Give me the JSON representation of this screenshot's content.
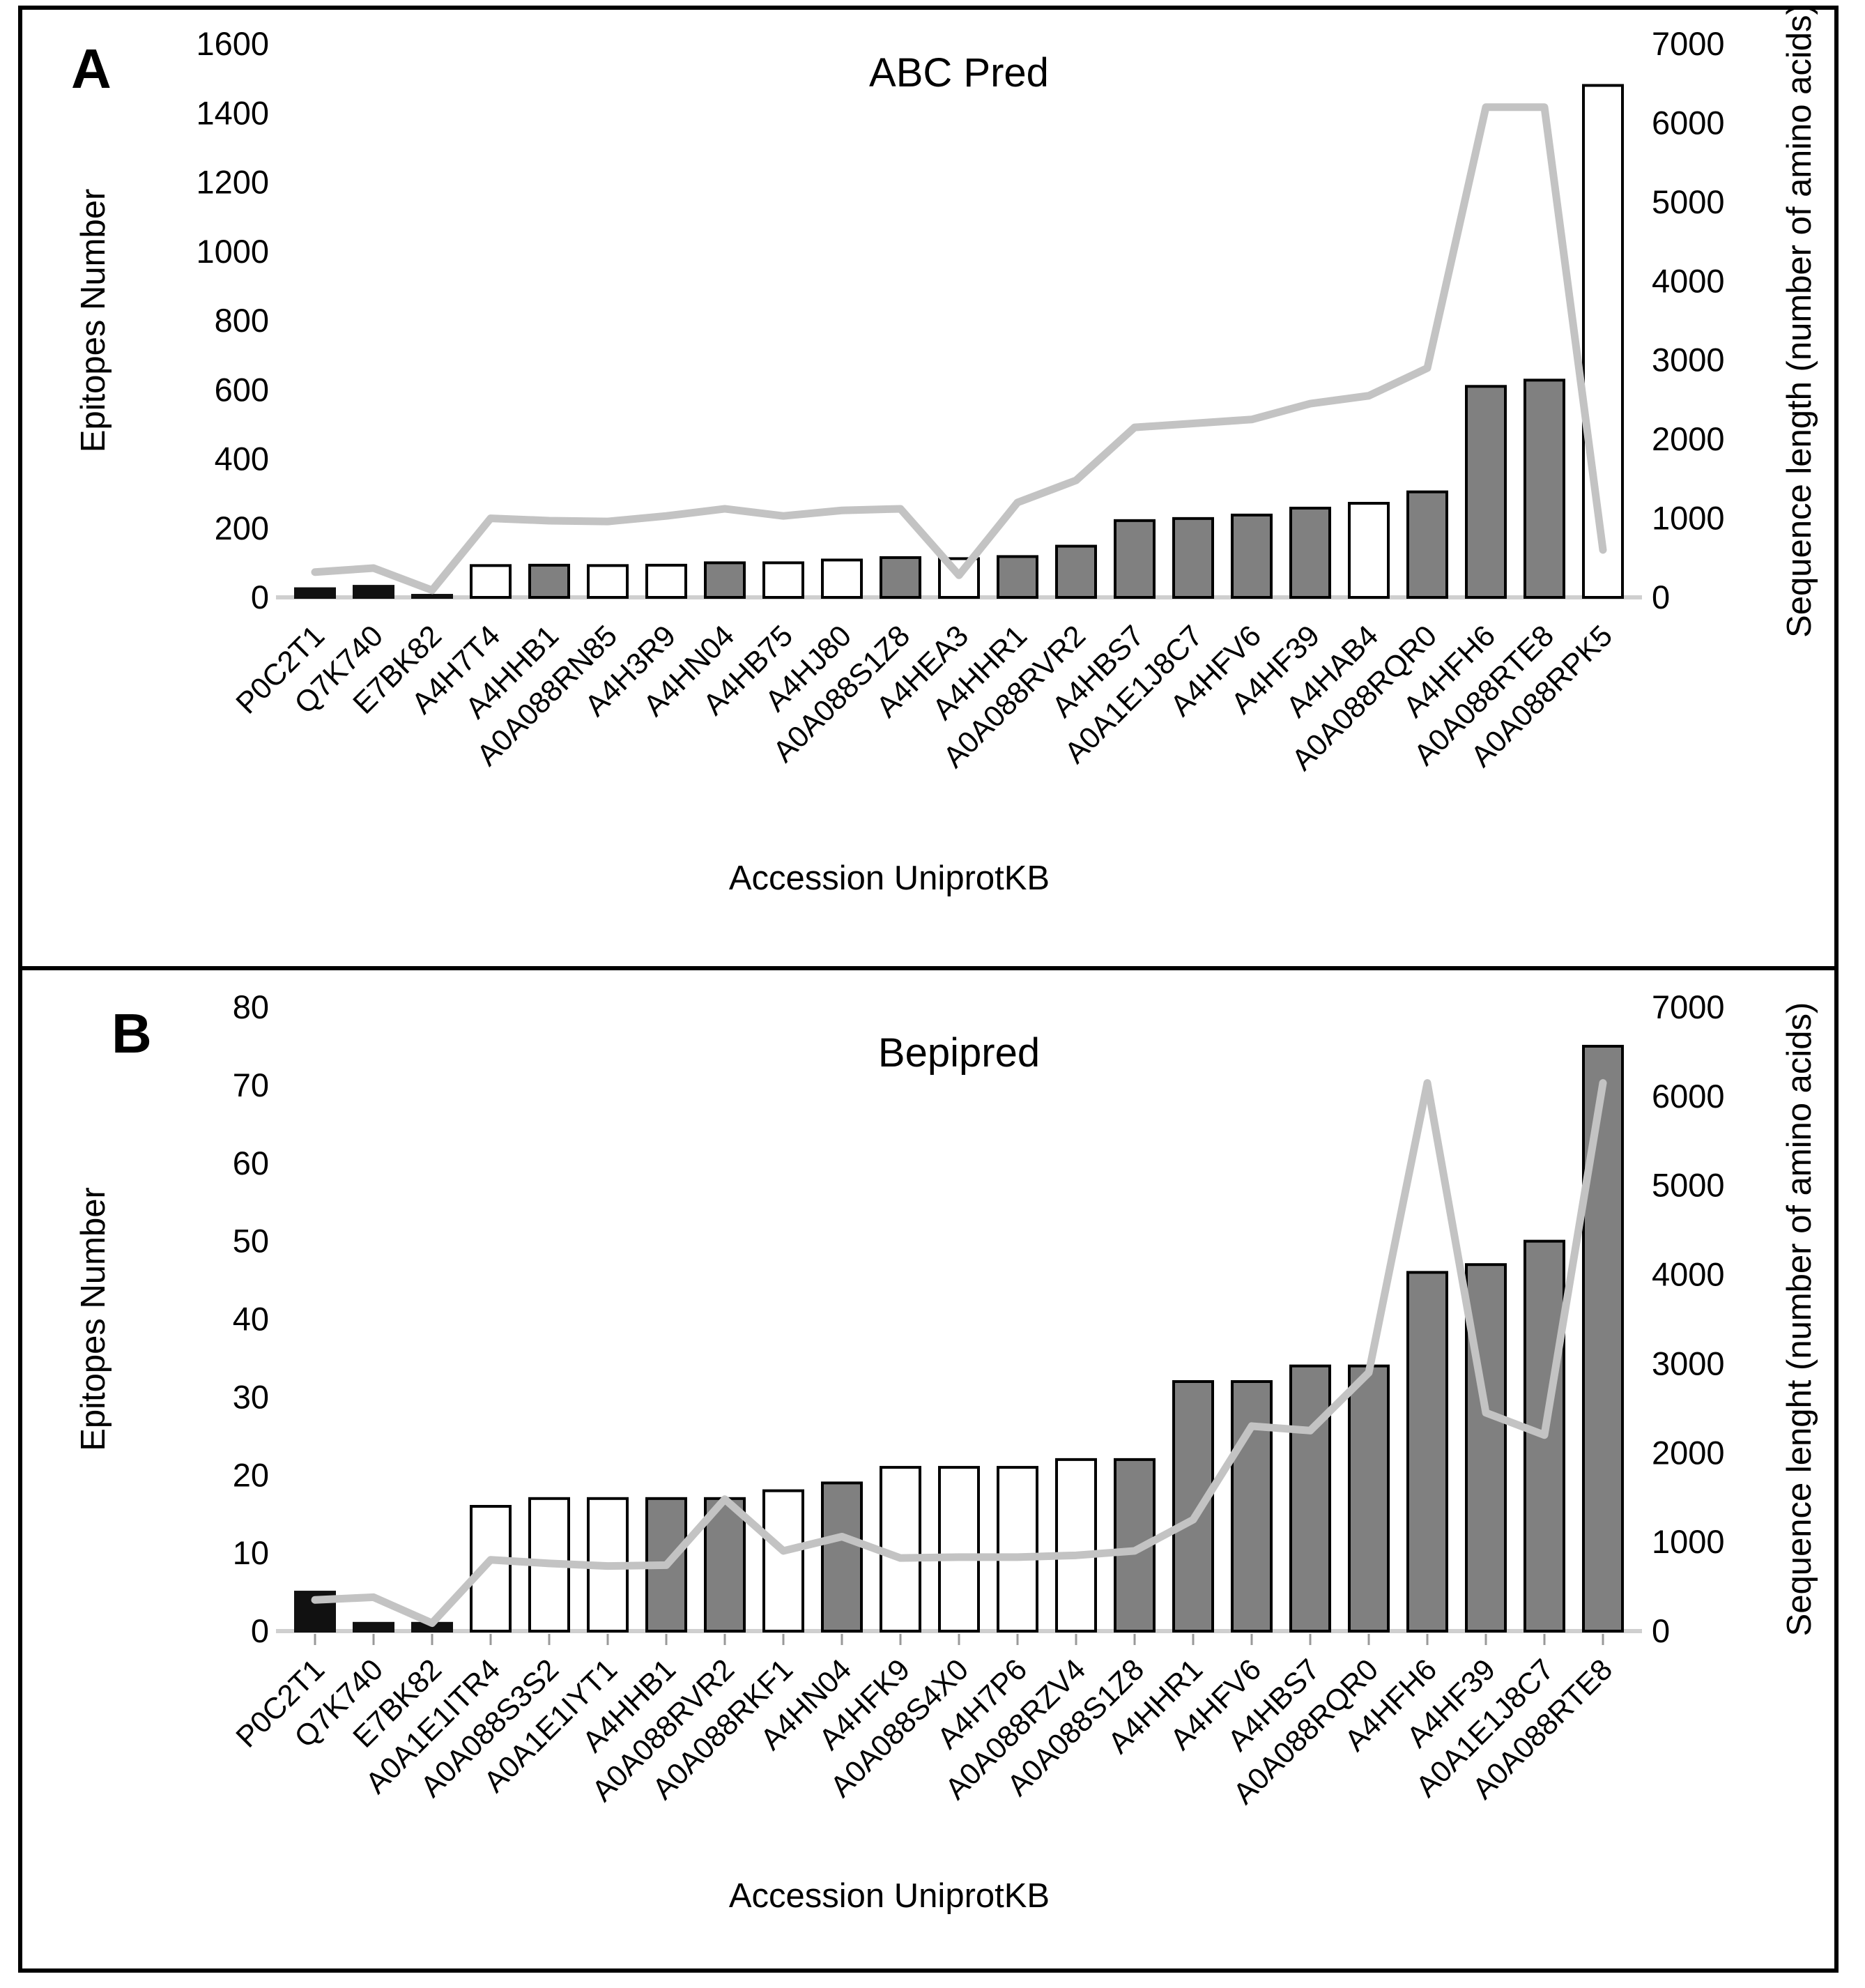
{
  "figure": {
    "kind": "two-panel scientific figure",
    "background": "#ffffff",
    "panel_letters": [
      "A",
      "B"
    ]
  },
  "colors": {
    "bar_black": "#111111",
    "bar_white": "#ffffff",
    "bar_gray": "#808080",
    "bar_stroke": "#000000",
    "line_gray": "#c3c3c3",
    "axis_line": "#cfcfcf",
    "tick_mark": "#999999",
    "text": "#000000",
    "border": "#000000"
  },
  "chart_data": [
    {
      "panel": "A",
      "type": "bar",
      "combo": "bar+line",
      "title": "ABC Pred",
      "xlabel": "Accession UniprotKB",
      "ylabel_left": "Epitopes Number",
      "ylabel_right": "Sequence length (number of amino acids)",
      "y_left_range": [
        0,
        1600
      ],
      "y_left_step": 200,
      "y_right_range": [
        0,
        7000
      ],
      "y_right_step": 1000,
      "grid": false,
      "legend": "none",
      "x_tick_marks": false,
      "categories": [
        "P0C2T1",
        "Q7K740",
        "E7BK82",
        "A4H7T4",
        "A4HHB1",
        "A0A088RN85",
        "A4H3R9",
        "A4HN04",
        "A4HB75",
        "A4HJ80",
        "A0A088S1Z8",
        "A4HEA3",
        "A4HHR1",
        "A0A088RVR2",
        "A4HBS7",
        "A0A1E1J8C7",
        "A4HFV6",
        "A4HF39",
        "A4HAB4",
        "A0A088RQR0",
        "A4HFH6",
        "A0A088RTE8",
        "A0A088RPK5"
      ],
      "series": [
        {
          "name": "Epitopes Number",
          "type": "bar",
          "axis": "left",
          "values": [
            25,
            32,
            6,
            92,
            93,
            92,
            93,
            100,
            100,
            108,
            115,
            112,
            118,
            148,
            222,
            228,
            238,
            258,
            272,
            305,
            610,
            628,
            1480
          ],
          "bar_styles": [
            "black",
            "black",
            "black",
            "white",
            "gray",
            "white",
            "white",
            "gray",
            "white",
            "white",
            "gray",
            "white",
            "gray",
            "gray",
            "gray",
            "gray",
            "gray",
            "gray",
            "white",
            "gray",
            "gray",
            "gray",
            "white"
          ]
        },
        {
          "name": "Sequence length (number of amino acids)",
          "type": "line",
          "axis": "right",
          "values": [
            320,
            370,
            90,
            1000,
            970,
            960,
            1030,
            1120,
            1030,
            1100,
            1120,
            280,
            1200,
            1480,
            2150,
            2200,
            2250,
            2450,
            2550,
            2900,
            6200,
            6200,
            600
          ]
        }
      ]
    },
    {
      "panel": "B",
      "type": "bar",
      "combo": "bar+line",
      "title": "Bepipred",
      "xlabel": "Accession UniprotKB",
      "ylabel_left": "Epitopes Number",
      "ylabel_right": "Sequence lenght (number of amino acids)",
      "y_left_range": [
        0,
        80
      ],
      "y_left_step": 10,
      "y_right_range": [
        0,
        7000
      ],
      "y_right_step": 1000,
      "grid": false,
      "legend": "none",
      "x_tick_marks": true,
      "categories": [
        "P0C2T1",
        "Q7K740",
        "E7BK82",
        "A0A1E1ITR4",
        "A0A088S3S2",
        "A0A1E1IYT1",
        "A4HHB1",
        "A0A088RVR2",
        "A0A088RKF1",
        "A4HN04",
        "A4HFK9",
        "A0A088S4X0",
        "A4H7P6",
        "A0A088RZV4",
        "A0A088S1Z8",
        "A4HHR1",
        "A4HFV6",
        "A4HBS7",
        "A0A088RQR0",
        "A4HFH6",
        "A4HF39",
        "A0A1E1J8C7",
        "A0A088RTE8"
      ],
      "series": [
        {
          "name": "Epitopes Number",
          "type": "bar",
          "axis": "left",
          "values": [
            5,
            1,
            1,
            16,
            17,
            17,
            17,
            17,
            18,
            19,
            21,
            21,
            21,
            22,
            22,
            32,
            32,
            34,
            34,
            46,
            47,
            50,
            75
          ],
          "bar_styles": [
            "black",
            "black",
            "black",
            "white",
            "white",
            "white",
            "gray",
            "gray",
            "white",
            "gray",
            "white",
            "white",
            "white",
            "white",
            "gray",
            "gray",
            "gray",
            "gray",
            "gray",
            "gray",
            "gray",
            "gray",
            "gray"
          ]
        },
        {
          "name": "Sequence lenght (number of amino acids)",
          "type": "line",
          "axis": "right",
          "values": [
            350,
            380,
            90,
            800,
            760,
            730,
            740,
            1480,
            900,
            1060,
            820,
            830,
            830,
            850,
            900,
            1250,
            2300,
            2250,
            2900,
            6150,
            2450,
            2200,
            6150
          ]
        }
      ]
    }
  ]
}
